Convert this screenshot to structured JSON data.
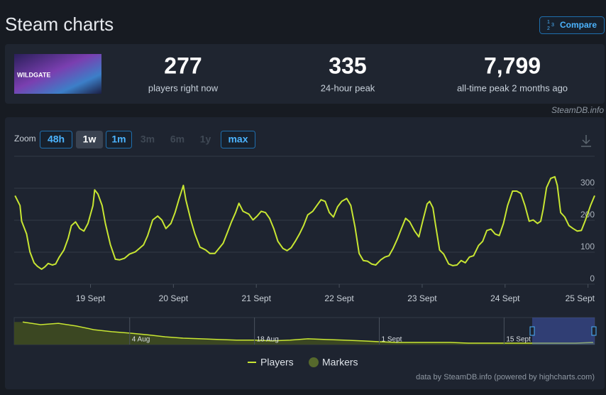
{
  "header": {
    "title": "Steam charts",
    "compare": "Compare"
  },
  "game": {
    "name": "WILDGATE"
  },
  "stats": [
    {
      "value": "277",
      "label": "players right now"
    },
    {
      "value": "335",
      "label": "24-hour peak"
    },
    {
      "value": "7,799",
      "label": "all-time peak 2 months ago"
    }
  ],
  "credit_top": "SteamDB.info",
  "zoom": {
    "label": "Zoom",
    "options": [
      "48h",
      "1w",
      "1m",
      "3m",
      "6m",
      "1y",
      "max"
    ],
    "selected": "1w",
    "disabled": [
      "3m",
      "6m",
      "1y"
    ]
  },
  "chart_data": [
    {
      "type": "line",
      "x": [
        18.09,
        18.15,
        18.17,
        18.23,
        18.27,
        18.32,
        18.36,
        18.41,
        18.45,
        18.49,
        18.54,
        18.58,
        18.62,
        18.68,
        18.73,
        18.77,
        18.82,
        18.87,
        18.92,
        18.97,
        19.03,
        19.05,
        19.09,
        19.14,
        19.18,
        19.24,
        19.3,
        19.35,
        19.41,
        19.47,
        19.54,
        19.59,
        19.64,
        19.69,
        19.75,
        19.81,
        19.86,
        19.91,
        19.97,
        20.02,
        20.07,
        20.12,
        20.15,
        20.21,
        20.26,
        20.32,
        20.39,
        20.44,
        20.5,
        20.55,
        20.6,
        20.65,
        20.7,
        20.75,
        20.79,
        20.84,
        20.91,
        20.96,
        21.01,
        21.06,
        21.11,
        21.16,
        21.21,
        21.26,
        21.32,
        21.37,
        21.42,
        21.47,
        21.52,
        21.57,
        21.62,
        21.68,
        21.73,
        21.78,
        21.83,
        21.88,
        21.93,
        21.98,
        22.03,
        22.09,
        22.14,
        22.19,
        22.24,
        22.29,
        22.34,
        22.39,
        22.44,
        22.5,
        22.55,
        22.6,
        22.65,
        22.7,
        22.75,
        22.8,
        22.85,
        22.91,
        22.96,
        23.01,
        23.06,
        23.09,
        23.13,
        23.16,
        23.21,
        23.26,
        23.32,
        23.37,
        23.42,
        23.47,
        23.52,
        23.57,
        23.62,
        23.68,
        23.73,
        23.78,
        23.83,
        23.88,
        23.93,
        23.98,
        24.03,
        24.09,
        24.14,
        24.19,
        24.24,
        24.29,
        24.34,
        24.39,
        24.43,
        24.46,
        24.5,
        24.55,
        24.6,
        24.63,
        24.67,
        24.72,
        24.77,
        24.82,
        24.87,
        24.92,
        24.97,
        25.03,
        25.08
      ],
      "series": [
        {
          "name": "Players",
          "color": "#c8e632",
          "values": [
            277,
            246,
            197,
            157,
            101,
            67,
            56,
            47,
            54,
            65,
            60,
            63,
            83,
            107,
            143,
            183,
            195,
            174,
            166,
            190,
            246,
            295,
            282,
            246,
            190,
            123,
            78,
            76,
            81,
            94,
            101,
            112,
            123,
            152,
            201,
            213,
            201,
            174,
            190,
            224,
            268,
            309,
            264,
            201,
            157,
            116,
            107,
            96,
            96,
            112,
            128,
            161,
            195,
            224,
            253,
            228,
            219,
            201,
            213,
            228,
            224,
            206,
            174,
            134,
            112,
            105,
            114,
            134,
            157,
            183,
            217,
            228,
            246,
            264,
            259,
            224,
            210,
            242,
            259,
            268,
            246,
            179,
            96,
            74,
            72,
            63,
            60,
            76,
            85,
            89,
            112,
            141,
            174,
            206,
            195,
            166,
            148,
            201,
            251,
            259,
            239,
            188,
            107,
            94,
            63,
            58,
            60,
            74,
            67,
            85,
            89,
            121,
            134,
            168,
            172,
            157,
            152,
            190,
            246,
            291,
            291,
            284,
            246,
            197,
            201,
            190,
            197,
            235,
            302,
            331,
            336,
            309,
            224,
            210,
            183,
            174,
            166,
            168,
            201,
            246,
            277
          ]
        }
      ],
      "markers": {
        "name": "Markers",
        "color": "#56692c"
      },
      "xlim": [
        18.08,
        25.08
      ],
      "xticks": [
        {
          "value": 19,
          "label": "19 Sept"
        },
        {
          "value": 20,
          "label": "20 Sept"
        },
        {
          "value": 21,
          "label": "21 Sept"
        },
        {
          "value": 22,
          "label": "22 Sept"
        },
        {
          "value": 23,
          "label": "23 Sept"
        },
        {
          "value": 24,
          "label": "24 Sept"
        },
        {
          "value": 25,
          "label": "25 Sept"
        }
      ],
      "ylim": [
        0,
        400
      ],
      "yticks": [
        0,
        100,
        200,
        300
      ],
      "grid": true,
      "legend": "bottom"
    },
    {
      "type": "area",
      "categories": [
        null,
        null,
        null,
        null,
        null,
        null,
        "4 Aug",
        null,
        null,
        null,
        null,
        null,
        null,
        "18 Aug",
        null,
        null,
        null,
        null,
        null,
        null,
        "1 Sept",
        null,
        null,
        null,
        null,
        null,
        null,
        "15 Sept",
        null,
        null,
        null,
        null,
        null
      ],
      "values": [
        6700,
        5900,
        6300,
        5500,
        4400,
        3800,
        3400,
        2900,
        2300,
        1900,
        1700,
        1500,
        1300,
        1300,
        1100,
        1300,
        1700,
        1500,
        1300,
        1100,
        840,
        630,
        630,
        630,
        630,
        420,
        420,
        420,
        420,
        420,
        420,
        420,
        630
      ],
      "color": "#c8e632",
      "fill": "#3b4722",
      "ylim": [
        0,
        8000
      ]
    }
  ],
  "footer": "data by SteamDB.info (powered by highcharts.com)"
}
